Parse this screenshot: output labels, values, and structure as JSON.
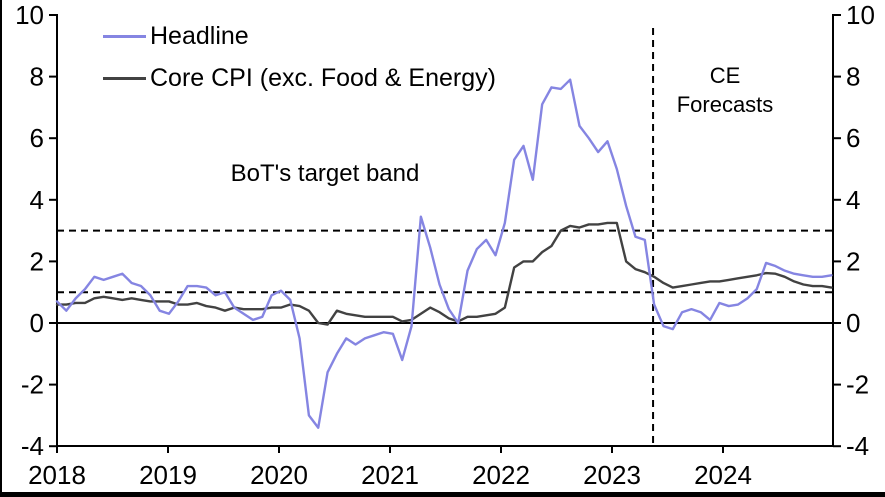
{
  "chart_data": {
    "type": "line",
    "title": "",
    "x_start": "2018-01",
    "x_end": "2024-12",
    "frequency": "monthly",
    "x_tick_labels": [
      "2018",
      "2019",
      "2020",
      "2021",
      "2022",
      "2023",
      "2024"
    ],
    "y_ticks": [
      10,
      8,
      6,
      4,
      2,
      0,
      -2,
      -4
    ],
    "ylim": [
      -4,
      10
    ],
    "grid": false,
    "legend_position": "top-left",
    "series": [
      {
        "name": "Headline",
        "color": "#8585e2",
        "values": [
          0.7,
          0.4,
          0.8,
          1.1,
          1.5,
          1.4,
          1.5,
          1.6,
          1.3,
          1.2,
          0.9,
          0.4,
          0.3,
          0.7,
          1.2,
          1.2,
          1.15,
          0.9,
          1.0,
          0.5,
          0.3,
          0.1,
          0.2,
          0.9,
          1.05,
          0.75,
          -0.5,
          -3.0,
          -3.4,
          -1.6,
          -1.0,
          -0.5,
          -0.7,
          -0.5,
          -0.4,
          -0.3,
          -0.35,
          -1.2,
          -0.1,
          3.45,
          2.45,
          1.25,
          0.45,
          0.0,
          1.7,
          2.4,
          2.7,
          2.2,
          3.25,
          5.3,
          5.75,
          4.65,
          7.1,
          7.65,
          7.6,
          7.9,
          6.4,
          6.0,
          5.55,
          5.9,
          5.0,
          3.8,
          2.8,
          2.7,
          0.6,
          -0.1,
          -0.2,
          0.35,
          0.45,
          0.35,
          0.1,
          0.65,
          0.55,
          0.6,
          0.8,
          1.1,
          1.95,
          1.85,
          1.7,
          1.6,
          1.55,
          1.5,
          1.5,
          1.55
        ]
      },
      {
        "name": "Core CPI (exc. Food & Energy)",
        "color": "#424242",
        "values": [
          0.6,
          0.6,
          0.65,
          0.65,
          0.8,
          0.85,
          0.8,
          0.75,
          0.8,
          0.75,
          0.7,
          0.7,
          0.7,
          0.6,
          0.6,
          0.65,
          0.55,
          0.5,
          0.4,
          0.5,
          0.45,
          0.45,
          0.45,
          0.5,
          0.5,
          0.6,
          0.55,
          0.4,
          0.0,
          -0.05,
          0.4,
          0.3,
          0.25,
          0.2,
          0.2,
          0.2,
          0.2,
          0.05,
          0.1,
          0.3,
          0.5,
          0.35,
          0.15,
          0.05,
          0.2,
          0.2,
          0.25,
          0.3,
          0.5,
          1.8,
          2.0,
          2.0,
          2.3,
          2.5,
          3.0,
          3.15,
          3.1,
          3.2,
          3.2,
          3.25,
          3.25,
          2.0,
          1.75,
          1.65,
          1.5,
          1.3,
          1.15,
          1.2,
          1.25,
          1.3,
          1.35,
          1.35,
          1.4,
          1.45,
          1.5,
          1.55,
          1.62,
          1.6,
          1.5,
          1.35,
          1.25,
          1.2,
          1.2,
          1.15
        ]
      }
    ],
    "target_band": {
      "lower": 1,
      "upper": 3,
      "style": "dashed"
    },
    "forecast_divider": {
      "year_position": 2023.37,
      "style": "dashed"
    }
  },
  "annotations": {
    "target_band_label": "BoT's target band",
    "forecast_label_line1": "CE",
    "forecast_label_line2": "Forecasts"
  },
  "colors": {
    "headline": "#8585e2",
    "core": "#424242",
    "axis": "#000000",
    "background": "#ffffff"
  }
}
